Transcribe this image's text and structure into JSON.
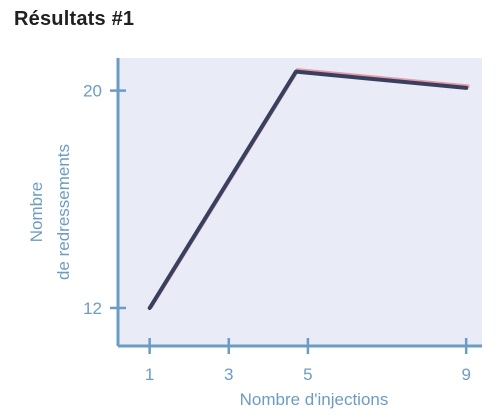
{
  "title": "Résultats #1",
  "chart_data": {
    "type": "line",
    "title": "Résultats #1",
    "xlabel": "Nombre d'injections",
    "ylabel_lines": [
      "Nombre",
      "de redressements"
    ],
    "x_ticks": [
      1,
      3,
      5,
      9
    ],
    "y_ticks": [
      12,
      20
    ],
    "xlim": [
      0.2,
      9.4
    ],
    "ylim": [
      10.6,
      21.2
    ],
    "grid": false,
    "series": [
      {
        "x": [
          1,
          4.7,
          9
        ],
        "y": [
          12,
          20.7,
          20.1
        ]
      }
    ],
    "colors": {
      "plot_background": "#e9ebf6",
      "axis": "#6c9cc3",
      "line_main": "#384060",
      "line_shadow": "#e89aa8",
      "tick_text": "#6c9cc3"
    }
  }
}
